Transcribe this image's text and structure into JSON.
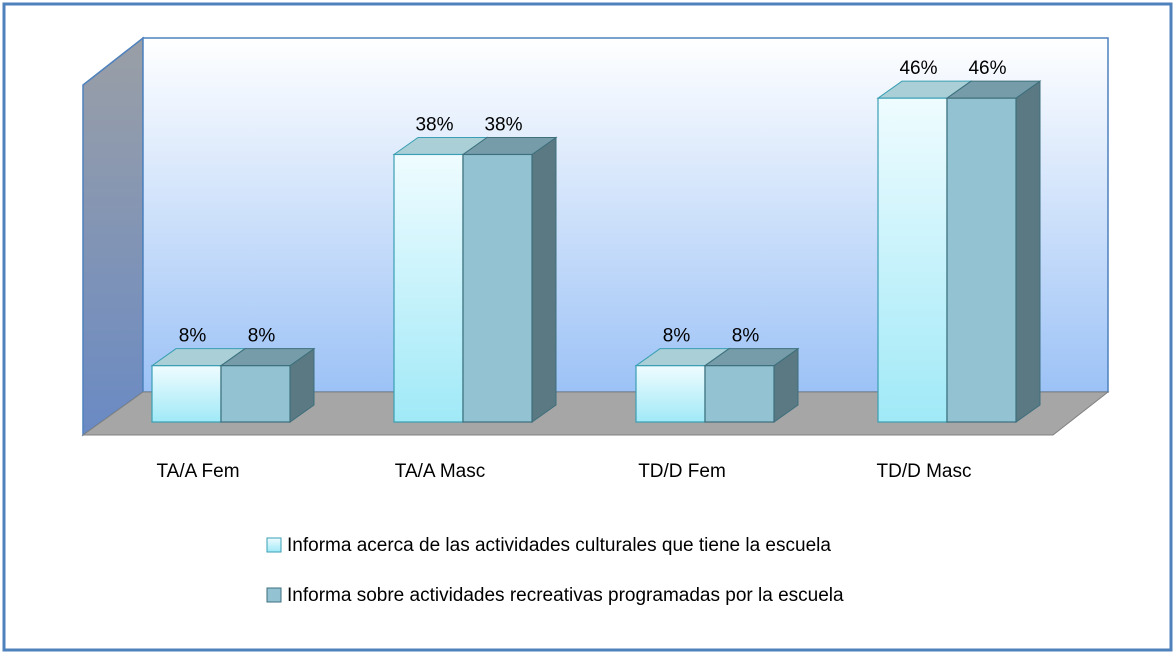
{
  "chart_data": {
    "type": "bar3d",
    "categories": [
      "TA/A Fem",
      "TA/A Masc",
      "TD/D Fem",
      "TD/D Masc"
    ],
    "series": [
      {
        "name": "Informa acerca de las actividades culturales que tiene la escuela",
        "color": "#c8f4fc",
        "values": [
          8,
          38,
          8,
          46
        ],
        "value_labels": [
          "8%",
          "38%",
          "8%",
          "46%"
        ]
      },
      {
        "name": "Informa sobre actividades recreativas programadas por la escuela",
        "color": "#93c3d3",
        "values": [
          8,
          38,
          8,
          46
        ],
        "value_labels": [
          "8%",
          "38%",
          "8%",
          "46%"
        ]
      }
    ]
  }
}
